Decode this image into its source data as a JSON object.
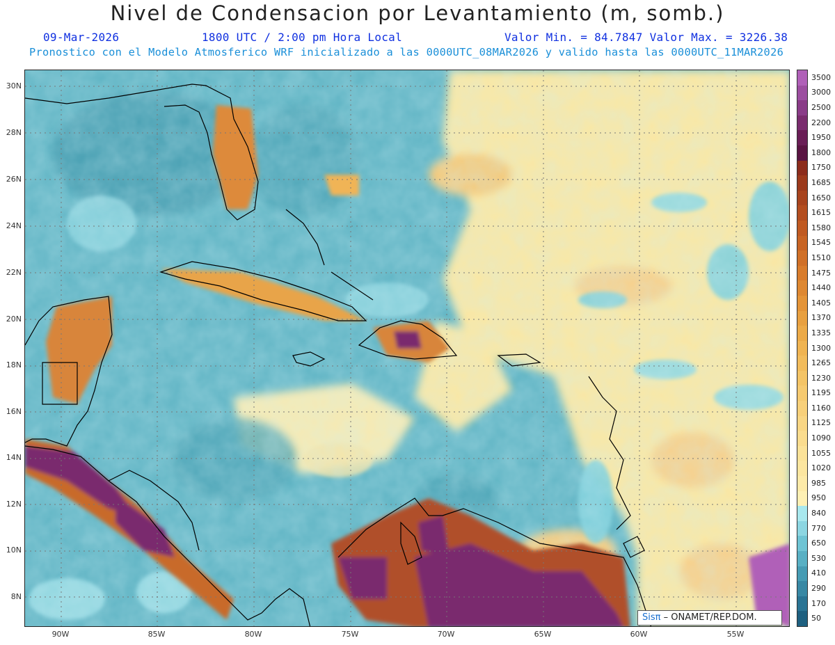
{
  "header": {
    "title": "Nivel de Condensacion por Levantamiento (m, somb.)",
    "date": "09-Mar-2026",
    "time": "1800 UTC / 2:00 pm Hora Local",
    "minmax": "Valor Min. = 84.7847  Valor Max. = 3226.38",
    "forecast_info": "Pronostico con el Modelo Atmosferico WRF inicializado a las 0000UTC_08MAR2026 y valido hasta las  0000UTC_11MAR2026"
  },
  "axes": {
    "lat_labels": [
      "30N",
      "28N",
      "26N",
      "24N",
      "22N",
      "20N",
      "18N",
      "16N",
      "14N",
      "12N",
      "10N",
      "8N"
    ],
    "lon_labels": [
      "90W",
      "85W",
      "80W",
      "75W",
      "70W",
      "65W",
      "60W",
      "55W"
    ]
  },
  "colorbar": {
    "labels": [
      "3500",
      "3000",
      "2500",
      "2200",
      "1950",
      "1800",
      "1750",
      "1685",
      "1650",
      "1615",
      "1580",
      "1545",
      "1510",
      "1475",
      "1440",
      "1405",
      "1370",
      "1335",
      "1300",
      "1265",
      "1230",
      "1195",
      "1160",
      "1125",
      "1090",
      "1055",
      "1020",
      "985",
      "950",
      "840",
      "770",
      "650",
      "530",
      "410",
      "290",
      "170",
      "50"
    ],
    "colors": [
      "#b060b8",
      "#9c4ea0",
      "#8a3c88",
      "#7a2c6e",
      "#6a1e56",
      "#5a1442",
      "#8c2c1c",
      "#9c3a1c",
      "#a8441e",
      "#b44e20",
      "#c05a22",
      "#c86424",
      "#d07028",
      "#d87c2c",
      "#de8832",
      "#e49438",
      "#e8a040",
      "#ecaa48",
      "#f0b452",
      "#f2bc5c",
      "#f4c466",
      "#f6ca70",
      "#f8d07a",
      "#f9d684",
      "#fadc8e",
      "#fbe298",
      "#fce6a0",
      "#fdeaa8",
      "#fef0b4",
      "#a8e8ee",
      "#8cd6e2",
      "#6ec4d4",
      "#58b0c4",
      "#469cb4",
      "#3888a4",
      "#2a7494",
      "#1e6080"
    ]
  },
  "logo": {
    "sis": "Sisπ",
    "org": " – ONAMET/REP.DOM."
  },
  "map": {
    "background_color": "#5fb4c4",
    "land_outline_color": "#000000"
  }
}
